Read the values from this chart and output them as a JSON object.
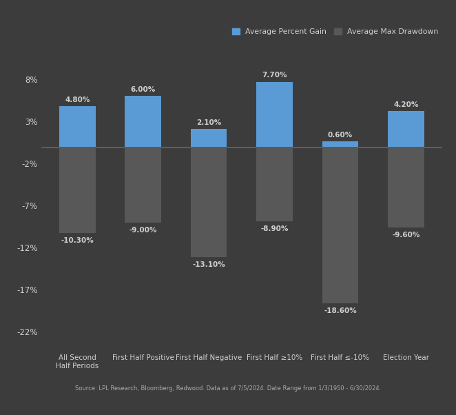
{
  "categories": [
    "All Second\nHalf Periods",
    "First Half Positive",
    "First Half Negative",
    "First Half ≥10%",
    "First Half ≤-10%",
    "Election Year"
  ],
  "gains": [
    4.8,
    6.0,
    2.1,
    7.7,
    0.6,
    4.2
  ],
  "drawdowns": [
    -10.3,
    -9.0,
    -13.1,
    -8.9,
    -18.6,
    -9.6
  ],
  "gain_labels": [
    "4.80%",
    "6.00%",
    "2.10%",
    "7.70%",
    "0.60%",
    "4.20%"
  ],
  "drawdown_labels": [
    "-10.30%",
    "-9.00%",
    "-13.10%",
    "-8.90%",
    "-18.60%",
    "-9.60%"
  ],
  "gain_color": "#5b9bd5",
  "drawdown_color": "#585858",
  "background_color": "#3c3c3c",
  "plot_bg_color": "#3c3c3c",
  "text_color": "#d0d0d0",
  "subtitle": "Source: LPL Research, Bloomberg, Redwood. Data as of 7/5/2024. Date Range from 1/3/1950 - 6/30/2024.",
  "legend_gain": "Average Percent Gain",
  "legend_drawdown": "Average Max Drawdown",
  "yticks": [
    -22,
    -17,
    -12,
    -7,
    -2,
    3,
    8
  ],
  "ytick_labels": [
    "-22%",
    "-17%",
    "-12%",
    "-7%",
    "-2%",
    "3%",
    "8%"
  ],
  "ylim": [
    -24,
    11
  ],
  "bar_width": 0.55
}
